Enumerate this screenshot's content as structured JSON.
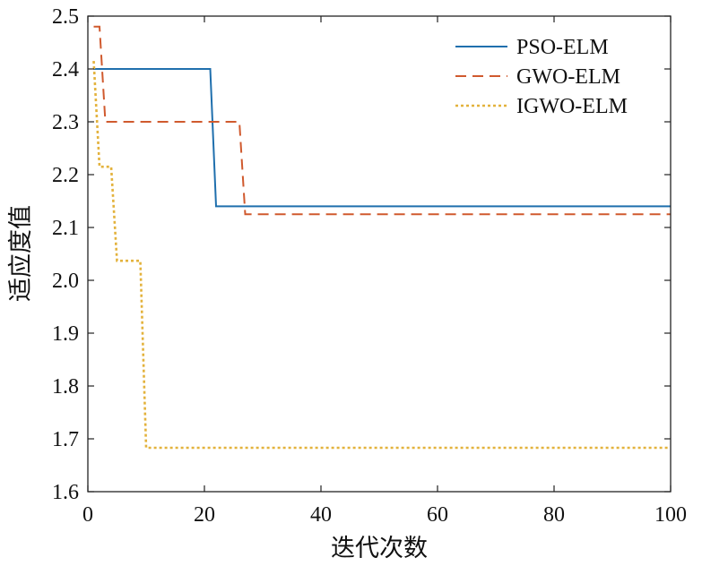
{
  "chart_data": {
    "type": "line",
    "title": "",
    "xlabel": "迭代次数",
    "ylabel": "适应度值",
    "xlim": [
      0,
      100
    ],
    "ylim": [
      1.6,
      2.5
    ],
    "x_ticks": [
      0,
      20,
      40,
      60,
      80,
      100
    ],
    "y_ticks": [
      1.6,
      1.7,
      1.8,
      1.9,
      2.0,
      2.1,
      2.2,
      2.3,
      2.4,
      2.5
    ],
    "x_tick_labels": [
      "0",
      "20",
      "40",
      "60",
      "80",
      "100"
    ],
    "y_tick_labels": [
      "1.6",
      "1.7",
      "1.8",
      "1.9",
      "2.0",
      "2.1",
      "2.2",
      "2.3",
      "2.4",
      "2.5"
    ],
    "grid": false,
    "legend_position": "top-right",
    "series": [
      {
        "name": "PSO-ELM",
        "color": "#1f6fad",
        "style": "solid",
        "points": [
          [
            1,
            2.4
          ],
          [
            21,
            2.4
          ],
          [
            22,
            2.14
          ],
          [
            100,
            2.14
          ]
        ]
      },
      {
        "name": "GWO-ELM",
        "color": "#d05a2e",
        "style": "dashed",
        "points": [
          [
            1,
            2.48
          ],
          [
            2,
            2.48
          ],
          [
            3,
            2.3
          ],
          [
            26,
            2.3
          ],
          [
            27,
            2.125
          ],
          [
            100,
            2.125
          ]
        ]
      },
      {
        "name": "IGWO-ELM",
        "color": "#e3b23c",
        "style": "dotted",
        "points": [
          [
            1,
            2.415
          ],
          [
            2,
            2.215
          ],
          [
            4,
            2.215
          ],
          [
            5,
            2.037
          ],
          [
            9,
            2.037
          ],
          [
            10,
            1.683
          ],
          [
            100,
            1.683
          ]
        ]
      }
    ]
  }
}
